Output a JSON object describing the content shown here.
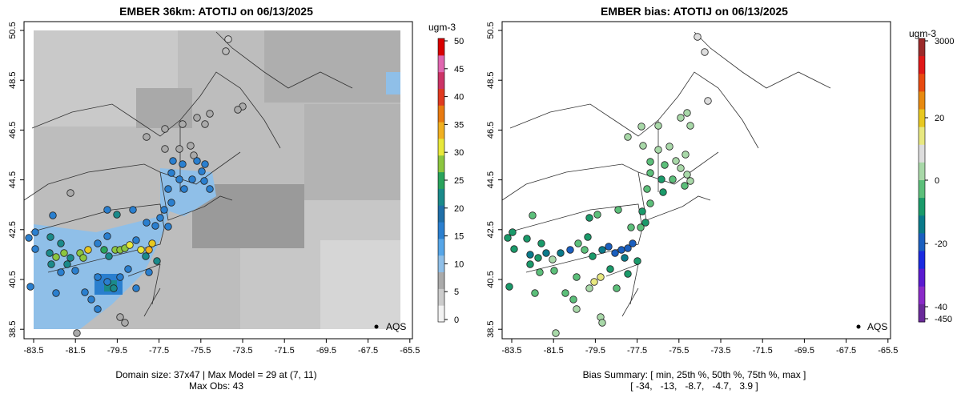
{
  "left_panel": {
    "title": "EMBER 36km: ATOTIJ on 06/13/2025",
    "caption_line1": "Domain size: 37x47 | Max Model = 29 at (7, 11)",
    "caption_line2": "Max Obs: 43",
    "colorbar": {
      "unit": "ugm-3",
      "ticks": [
        "0",
        "5",
        "10",
        "15",
        "20",
        "25",
        "30",
        "35",
        "40",
        "45",
        "50"
      ],
      "colors": [
        "#f2f2f2",
        "#cccccc",
        "#aaaaaa",
        "#8fbfe8",
        "#56a6e8",
        "#2a7fcf",
        "#1f6fa8",
        "#1a8a8a",
        "#29a35c",
        "#8cc63f",
        "#e8e83a",
        "#f0b020",
        "#e87a10",
        "#e03a20",
        "#cc3366",
        "#e066b0",
        "#d90000"
      ]
    },
    "legend": {
      "label": "AQS"
    }
  },
  "right_panel": {
    "title": "EMBER bias: ATOTIJ on 06/13/2025",
    "caption_line1": "Bias Summary: [ min, 25th %, 50th %, 75th %, max ]",
    "caption_line2": "[ -34,   -13,   -8.7,   -4.7,   3.9 ]",
    "colorbar": {
      "unit": "ugm-3",
      "ticks": [
        "3000",
        "20",
        "0",
        "-20",
        "-40",
        "-450"
      ],
      "colors": [
        "#9c2a2a",
        "#e01818",
        "#e84a10",
        "#e88a10",
        "#e8c820",
        "#e8e880",
        "#dddddd",
        "#a8d8a8",
        "#5cbf7a",
        "#1a9a6a",
        "#0a7a8a",
        "#1a5fbf",
        "#1a2ae0",
        "#5a1ad0",
        "#8a2ac8",
        "#6a2a9a"
      ]
    },
    "legend": {
      "label": "AQS"
    }
  },
  "axes": {
    "x_ticks": [
      "-83.5",
      "-81.5",
      "-79.5",
      "-77.5",
      "-75.5",
      "-73.5",
      "-71.5",
      "-69.5",
      "-67.5",
      "-65.5"
    ],
    "y_ticks": [
      "50.5",
      "48.5",
      "46.5",
      "44.5",
      "42.5",
      "40.5",
      "38.5"
    ]
  }
}
